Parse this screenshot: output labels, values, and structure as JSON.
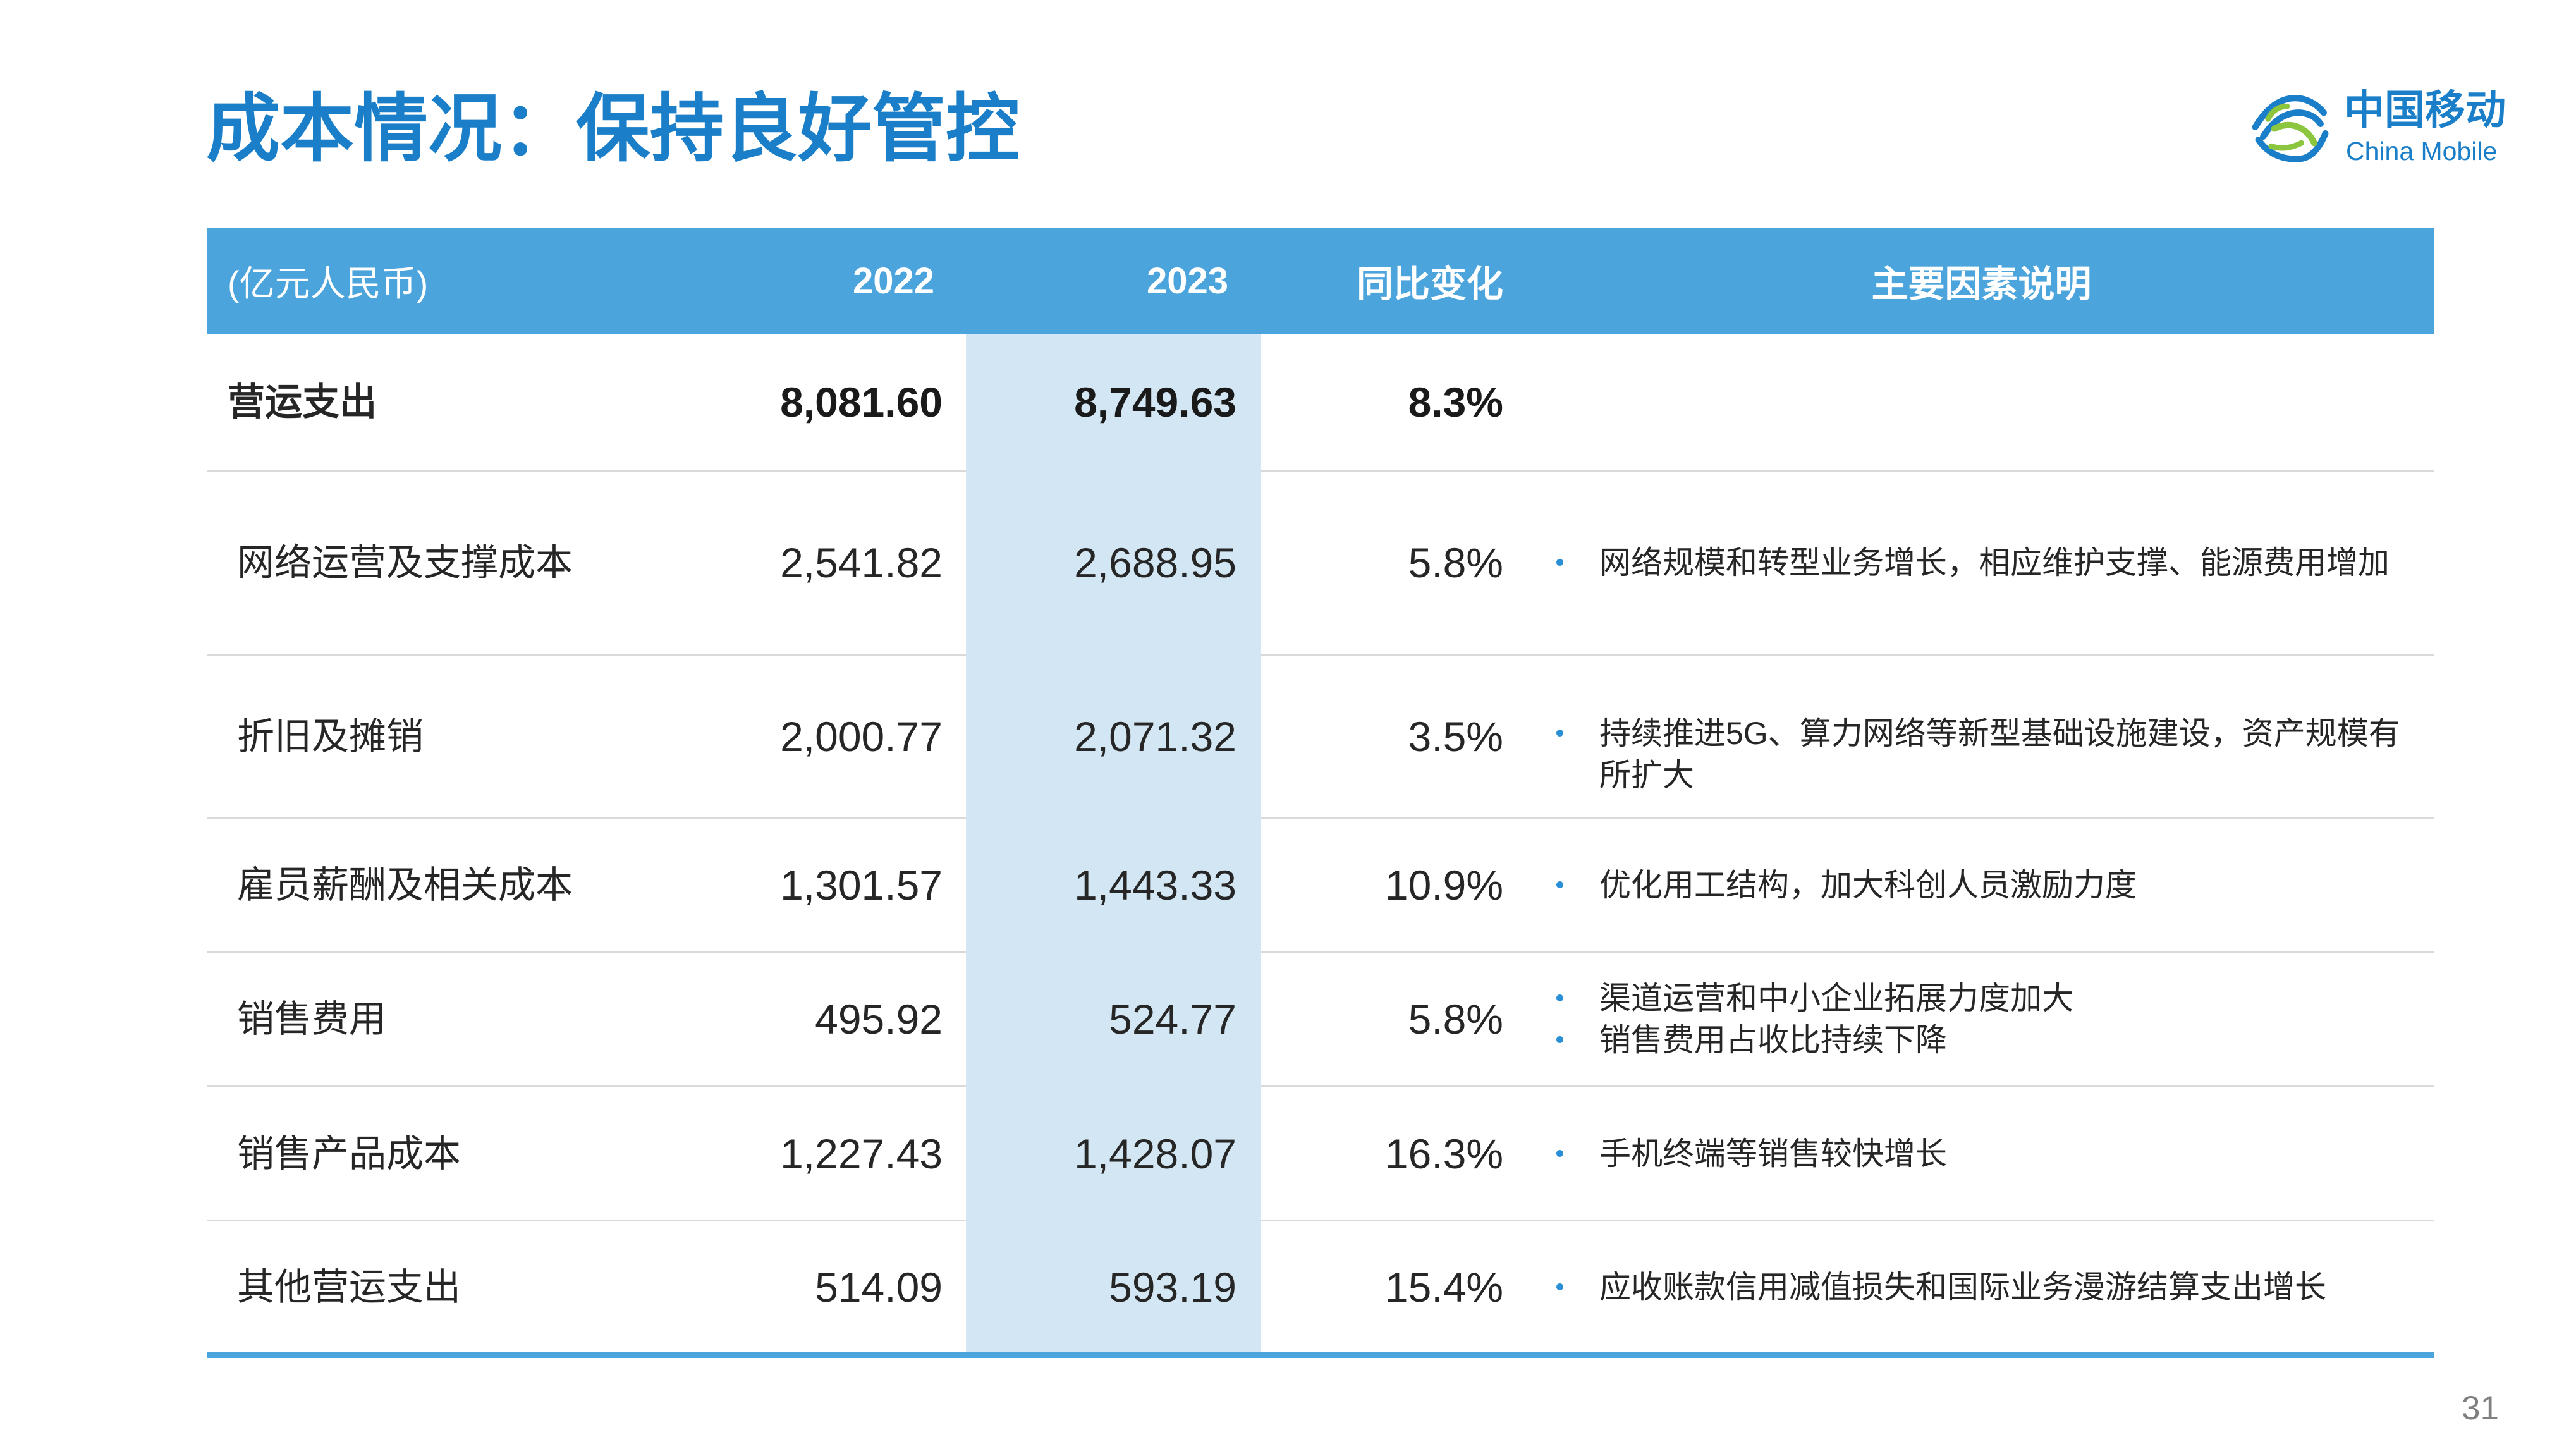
{
  "title": "成本情况：保持良好管控",
  "logo": {
    "cn": "中国移动",
    "en": "China Mobile"
  },
  "table": {
    "headers": {
      "unit": "(亿元人民币)",
      "y2022": "2022",
      "y2023": "2023",
      "yoy": "同比变化",
      "factors": "主要因素说明"
    },
    "rows": [
      {
        "label": "营运支出",
        "v2022": "8,081.60",
        "v2023": "8,749.63",
        "yoy": "8.3%",
        "factors": []
      },
      {
        "label": "网络运营及支撑成本",
        "v2022": "2,541.82",
        "v2023": "2,688.95",
        "yoy": "5.8%",
        "factors": [
          "网络规模和转型业务增长，相应维护支撑、能源费用增加"
        ]
      },
      {
        "label": "折旧及摊销",
        "v2022": "2,000.77",
        "v2023": "2,071.32",
        "yoy": "3.5%",
        "factors": [
          "持续推进5G、算力网络等新型基础设施建设，资产规模有所扩大"
        ]
      },
      {
        "label": "雇员薪酬及相关成本",
        "v2022": "1,301.57",
        "v2023": "1,443.33",
        "yoy": "10.9%",
        "factors": [
          "优化用工结构，加大科创人员激励力度"
        ]
      },
      {
        "label": "销售费用",
        "v2022": "495.92",
        "v2023": "524.77",
        "yoy": "5.8%",
        "factors": [
          "渠道运营和中小企业拓展力度加大",
          "销售费用占收比持续下降"
        ]
      },
      {
        "label": "销售产品成本",
        "v2022": "1,227.43",
        "v2023": "1,428.07",
        "yoy": "16.3%",
        "factors": [
          "手机终端等销售较快增长"
        ]
      },
      {
        "label": "其他营运支出",
        "v2022": "514.09",
        "v2023": "593.19",
        "yoy": "15.4%",
        "factors": [
          "应收账款信用减值损失和国际业务漫游结算支出增长"
        ]
      }
    ]
  },
  "page_number": "31",
  "colors": {
    "title": "#1a7fc8",
    "header_bg": "#4ba4dc",
    "highlight_column": "#d3e6f3",
    "bullet": "#2a8fd4",
    "logo_blue": "#1a7fc8",
    "logo_green": "#8cc63f",
    "divider": "#d9d9d9"
  }
}
